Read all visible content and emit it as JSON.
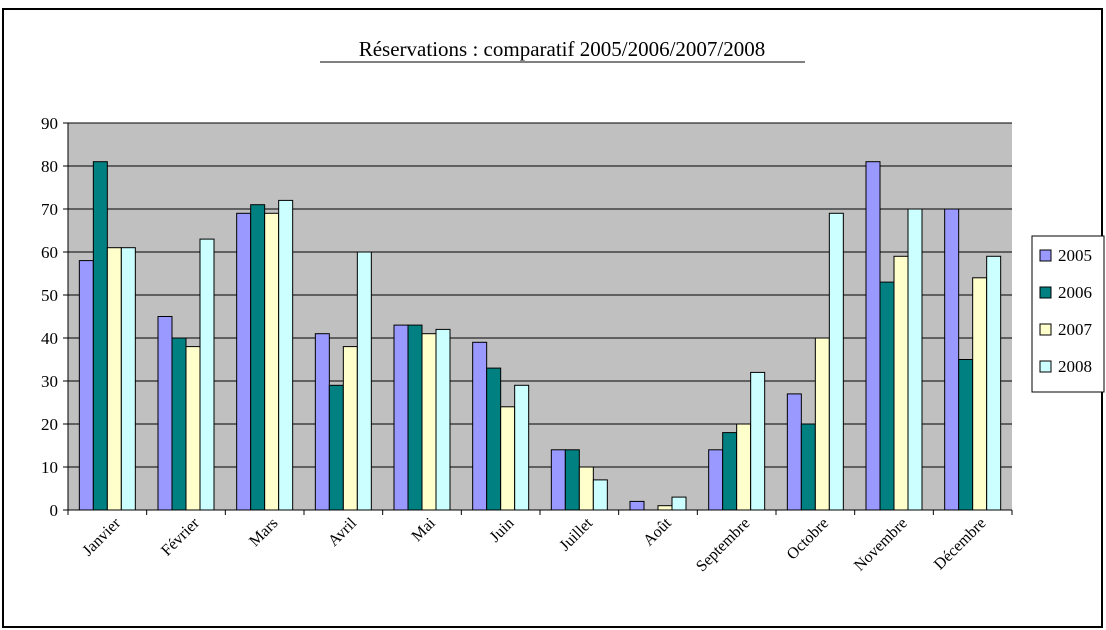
{
  "chart_data": {
    "type": "bar",
    "title": "Réservations : comparatif 2005/2006/2007/2008",
    "categories": [
      "Janvier",
      "Février",
      "Mars",
      "Avril",
      "Mai",
      "Juin",
      "Juillet",
      "Août",
      "Septembre",
      "Octobre",
      "Novembre",
      "Décembre"
    ],
    "series": [
      {
        "name": "2005",
        "color": "#9999ff",
        "values": [
          58,
          45,
          69,
          41,
          43,
          39,
          14,
          2,
          14,
          27,
          81,
          70
        ]
      },
      {
        "name": "2006",
        "color": "#008080",
        "values": [
          81,
          40,
          71,
          29,
          43,
          33,
          14,
          0,
          18,
          20,
          53,
          35
        ]
      },
      {
        "name": "2007",
        "color": "#ffffcc",
        "values": [
          61,
          38,
          69,
          38,
          41,
          24,
          10,
          1,
          20,
          40,
          59,
          54
        ]
      },
      {
        "name": "2008",
        "color": "#ccffff",
        "values": [
          61,
          63,
          72,
          60,
          42,
          29,
          7,
          3,
          32,
          69,
          70,
          59
        ]
      }
    ],
    "ylim": [
      0,
      90
    ],
    "yticks": [
      0,
      10,
      20,
      30,
      40,
      50,
      60,
      70,
      80,
      90
    ],
    "grid": true,
    "plot_background": "#c0c0c0",
    "legend_position": "right"
  }
}
